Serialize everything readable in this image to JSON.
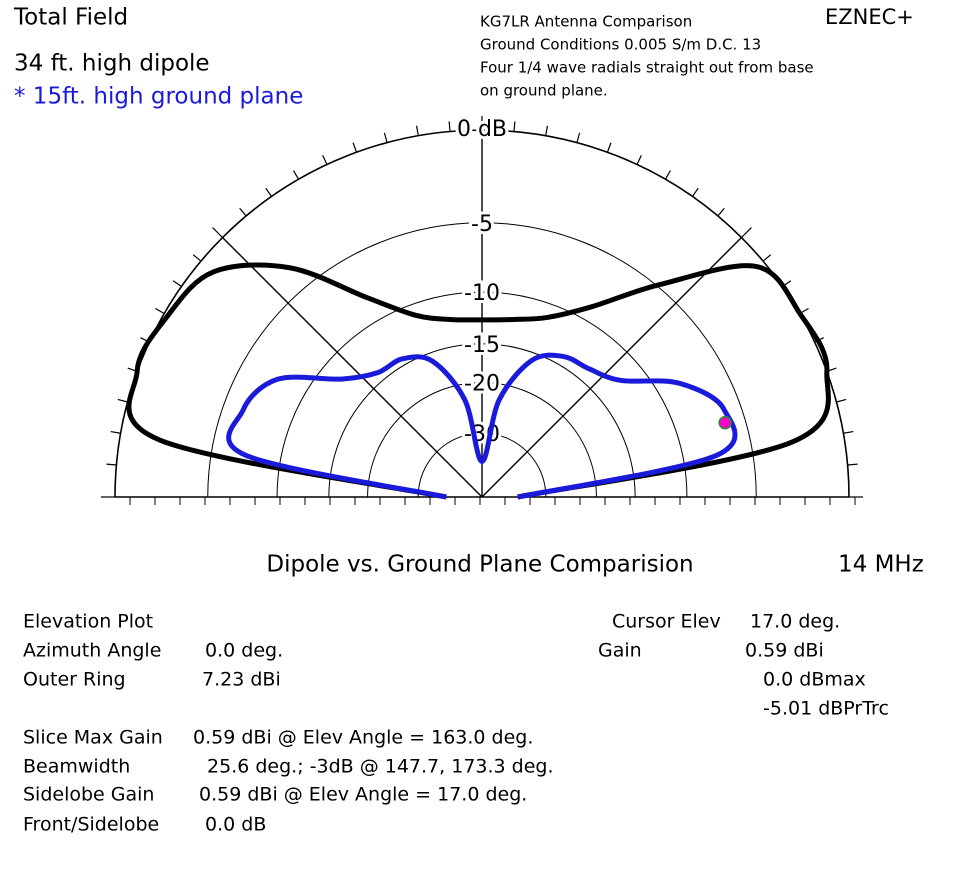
{
  "chart_data": {
    "type": "polar",
    "title": "Total Field",
    "program": "EZNEC+",
    "notes": [
      "KG7LR Antenna Comparison",
      "Ground Conditions 0.005 S/m D.C. 13",
      "Four 1/4 wave radials straight out from base",
      "on ground plane."
    ],
    "caption": "Dipole vs. Ground Plane Comparision",
    "frequency": "14 MHz",
    "rscale": "arrl",
    "rmax": 0,
    "rticks": [
      {
        "value": 0,
        "label": "0 dB"
      },
      -5,
      -10,
      -15,
      -20,
      -30
    ],
    "thetaticks": [
      0,
      45,
      90,
      135,
      180
    ],
    "angles": [
      0,
      10,
      20,
      30,
      40,
      50,
      60,
      70,
      80,
      90,
      100,
      110,
      120,
      130,
      140,
      150,
      160,
      170,
      180
    ],
    "series": [
      {
        "name": "34 ft. high dipole",
        "color": "#000000",
        "values": [
          -40,
          -2.7,
          0,
          0,
          -0.4,
          -4.8,
          -8.8,
          -11.2,
          -12.2,
          -12.5,
          -12.2,
          -11,
          -8,
          -3.5,
          -0.8,
          -0.2,
          0,
          -2,
          -40
        ]
      },
      {
        "name": "* 15ft. high ground plane",
        "color": "#1a1adb",
        "values": [
          -40,
          -7.5,
          -6.1,
          -8.2,
          -12.1,
          -13.5,
          -14,
          -15.9,
          -22.6,
          -40,
          -22.6,
          -16,
          -14.3,
          -14,
          -11.9,
          -7.6,
          -6.3,
          -7.3,
          -40
        ]
      }
    ],
    "cursor": {
      "angle": 17,
      "value": -6.3,
      "color": "#ff00cc"
    },
    "info_left": [
      {
        "label": "Elevation Plot"
      },
      {
        "label": "Azimuth Angle",
        "value": "0.0 deg."
      },
      {
        "label": "Outer Ring",
        "value": "7.23 dBi"
      },
      {
        "label": "Slice Max Gain",
        "value": "0.59 dBi @ Elev Angle = 163.0 deg."
      },
      {
        "label": "Beamwidth",
        "value": "25.6 deg.; -3dB @ 147.7, 173.3 deg."
      },
      {
        "label": "Sidelobe Gain",
        "value": "0.59 dBi @ Elev Angle = 17.0 deg."
      },
      {
        "label": "Front/Sidelobe",
        "value": "0.0 dB"
      }
    ],
    "info_right": [
      {
        "label": "Cursor Elev",
        "value": "17.0 deg."
      },
      {
        "label": "Gain",
        "value": "0.59 dBi"
      },
      {
        "value": "0.0 dBmax"
      },
      {
        "value": "-5.01 dBPrTrc"
      }
    ]
  }
}
